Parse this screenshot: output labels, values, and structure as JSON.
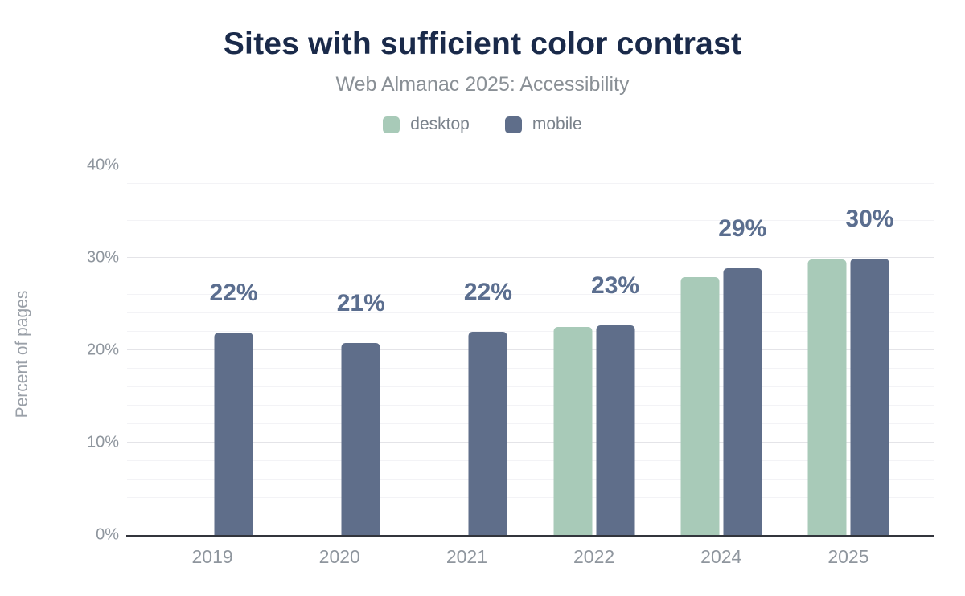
{
  "header": {
    "title": "Sites with sufficient color contrast",
    "subtitle": "Web Almanac 2025: Accessibility"
  },
  "chart_data": {
    "type": "bar",
    "categories": [
      "2019",
      "2020",
      "2021",
      "2022",
      "2024",
      "2025"
    ],
    "series": [
      {
        "name": "desktop",
        "color": "#a8cab8",
        "values": [
          null,
          null,
          null,
          22.5,
          27.9,
          29.8
        ]
      },
      {
        "name": "mobile",
        "color": "#5f6e8a",
        "values": [
          21.9,
          20.8,
          22.0,
          22.7,
          28.9,
          29.9
        ]
      }
    ],
    "value_labels": [
      "22%",
      "21%",
      "22%",
      "23%",
      "29%",
      "30%"
    ],
    "title": "Sites with sufficient color contrast",
    "subtitle": "Web Almanac 2025: Accessibility",
    "xlabel": "",
    "ylabel": "Percent of pages",
    "ylim": [
      0,
      40
    ],
    "yticks": [
      {
        "value": 0,
        "label": "0%"
      },
      {
        "value": 10,
        "label": "10%"
      },
      {
        "value": 20,
        "label": "20%"
      },
      {
        "value": 30,
        "label": "30%"
      },
      {
        "value": 40,
        "label": "40%"
      }
    ],
    "grid": {
      "minor_step": 2,
      "major_step": 10,
      "shown": true
    },
    "legend_position": "top",
    "value_label_color": "#5b6e8f",
    "title_color": "#1a2a4a"
  }
}
